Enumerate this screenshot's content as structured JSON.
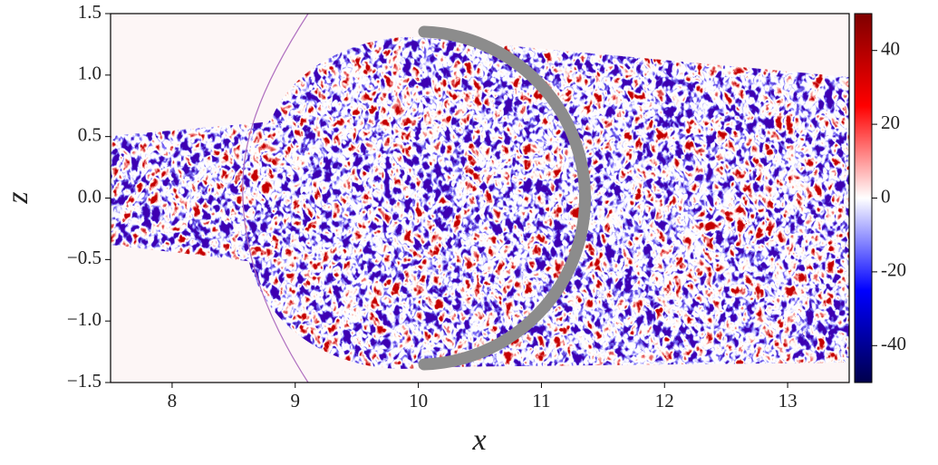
{
  "chart_data": {
    "type": "heatmap",
    "xlabel": "x",
    "ylabel": "z",
    "xlim": [
      7.5,
      13.5
    ],
    "xticks": [
      8,
      9,
      10,
      11,
      12,
      13
    ],
    "ylim": [
      -1.5,
      1.5
    ],
    "yticks": [
      {
        "value": -1.5,
        "label": "−1.5"
      },
      {
        "value": -1.0,
        "label": "−1.0"
      },
      {
        "value": -0.5,
        "label": "−0.5"
      },
      {
        "value": 0.0,
        "label": "0.0"
      },
      {
        "value": 0.5,
        "label": "0.5"
      },
      {
        "value": 1.0,
        "label": "1.0"
      },
      1.5
    ],
    "colorbar": {
      "lim": [
        -50,
        50
      ],
      "ticks": [
        -40,
        -20,
        0,
        20,
        40
      ],
      "colormap": [
        "#00004c",
        "#0000ff",
        "#ffffff",
        "#ff0000",
        "#7f0000"
      ]
    }
  }
}
